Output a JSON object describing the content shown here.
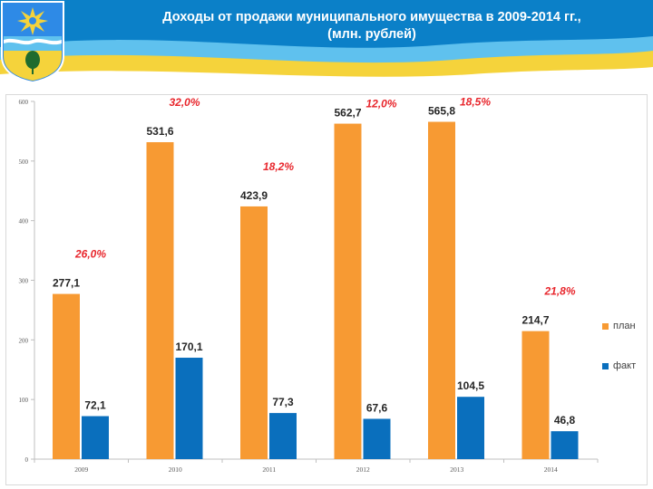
{
  "header": {
    "title_line1": "Доходы от продажи муниципального имущества в 2009-2014 гг.,",
    "title_line2": "(млн. рублей)",
    "colors": {
      "blue": "#0b80c8",
      "sky": "#5fc1ee",
      "yellow": "#f5d33b"
    }
  },
  "chart_data": {
    "type": "bar",
    "categories": [
      "2009",
      "2010",
      "2011",
      "2012",
      "2013",
      "2014"
    ],
    "series": [
      {
        "name": "план",
        "values": [
          277.1,
          531.6,
          423.9,
          562.7,
          565.8,
          214.7
        ],
        "labels": [
          "277,1",
          "531,6",
          "423,9",
          "562,7",
          "565,8",
          "214,7"
        ],
        "color": "#f79a33"
      },
      {
        "name": "факт",
        "values": [
          72.1,
          170.1,
          77.3,
          67.6,
          104.5,
          46.8
        ],
        "labels": [
          "72,1",
          "170,1",
          "77,3",
          "67,6",
          "104,5",
          "46,8"
        ],
        "color": "#0a6fbd"
      }
    ],
    "percent_labels": [
      "26,0%",
      "32,0%",
      "18,2%",
      "12,0%",
      "18,5%",
      "21,8%"
    ],
    "percent_color": "#e8262c",
    "yticks": [
      "0",
      "100",
      "200",
      "300",
      "400",
      "500",
      "600"
    ],
    "ylim": [
      0,
      600
    ],
    "grid": false,
    "legend_position": "right"
  }
}
